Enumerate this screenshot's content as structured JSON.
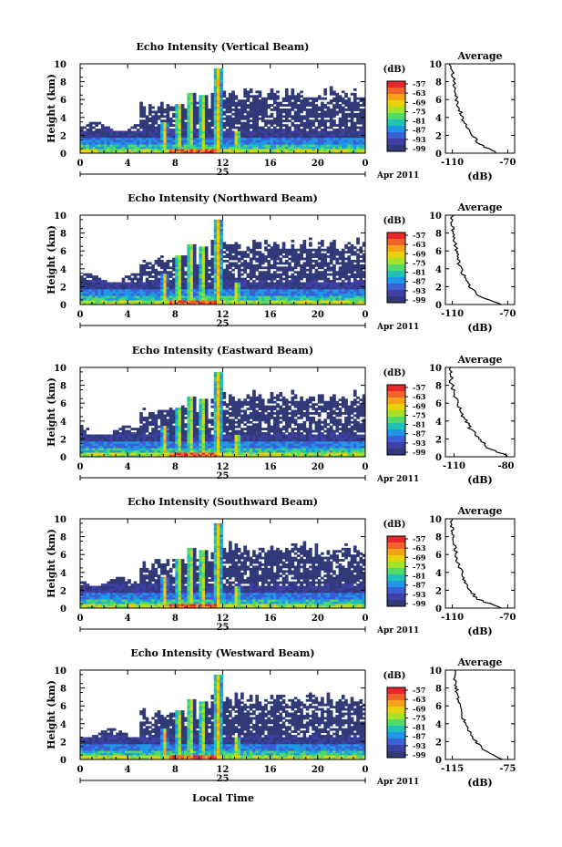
{
  "figure": {
    "xlabel_bottom": "Local Time",
    "colorbar_unit": "(dB)",
    "colorbar_ticks": [
      "-57",
      "-63",
      "-69",
      "-75",
      "-81",
      "-87",
      "-93",
      "-99"
    ],
    "average_title": "Average",
    "average_xlabel": "(dB)",
    "date_day": "25",
    "date_label": "Apr 2011",
    "colors": {
      "background_fill": "#303a78",
      "colormap": [
        "#e8272a",
        "#f2622b",
        "#f8a21c",
        "#e7d20b",
        "#a6e22a",
        "#53d86a",
        "#1fc2b4",
        "#2196e6",
        "#3b5fd6",
        "#3f3fa6",
        "#303a78"
      ]
    }
  },
  "chart_data": [
    {
      "type": "heatmap",
      "title": "Echo Intensity (Vertical Beam)",
      "ylabel": "Height (km)",
      "xlim": [
        0,
        24
      ],
      "ylim": [
        0,
        10
      ],
      "xticks": [
        "0",
        "4",
        "8",
        "12",
        "16",
        "20",
        "0"
      ],
      "yticks": [
        "0",
        "2",
        "4",
        "6",
        "8",
        "10"
      ],
      "clim": [
        -99,
        -57
      ],
      "average": {
        "xlim_labels": [
          "-110",
          "-70"
        ],
        "profile_dB": [
          -78,
          -90,
          -96,
          -100,
          -103,
          -105,
          -107,
          -108,
          -109,
          -110,
          -111
        ]
      }
    },
    {
      "type": "heatmap",
      "title": "Echo Intensity (Northward Beam)",
      "ylabel": "Height (km)",
      "xlim": [
        0,
        24
      ],
      "ylim": [
        0,
        10
      ],
      "xticks": [
        "0",
        "4",
        "8",
        "12",
        "16",
        "20",
        "0"
      ],
      "yticks": [
        "0",
        "2",
        "4",
        "6",
        "8",
        "10"
      ],
      "clim": [
        -99,
        -57
      ],
      "average": {
        "xlim_labels": [
          "-110",
          "-70"
        ],
        "profile_dB": [
          -74,
          -92,
          -97,
          -101,
          -104,
          -106,
          -107,
          -108,
          -109,
          -110,
          -110
        ]
      }
    },
    {
      "type": "heatmap",
      "title": "Echo Intensity (Eastward Beam)",
      "ylabel": "Height (km)",
      "xlim": [
        0,
        24
      ],
      "ylim": [
        0,
        10
      ],
      "xticks": [
        "0",
        "4",
        "8",
        "12",
        "16",
        "20",
        "0"
      ],
      "yticks": [
        "0",
        "2",
        "4",
        "6",
        "8",
        "10"
      ],
      "clim": [
        -99,
        -57
      ],
      "average": {
        "xlim_labels": [
          "-110",
          "-80"
        ],
        "profile_dB": [
          -79,
          -90,
          -96,
          -100,
          -103,
          -106,
          -108,
          -110,
          -111,
          -112,
          -113
        ]
      }
    },
    {
      "type": "heatmap",
      "title": "Echo Intensity (Southward Beam)",
      "ylabel": "Height (km)",
      "xlim": [
        0,
        24
      ],
      "ylim": [
        0,
        10
      ],
      "xticks": [
        "0",
        "4",
        "8",
        "12",
        "16",
        "20",
        "0"
      ],
      "yticks": [
        "0",
        "2",
        "4",
        "6",
        "8",
        "10"
      ],
      "clim": [
        -99,
        -57
      ],
      "average": {
        "xlim_labels": [
          "-110",
          "-70"
        ],
        "profile_dB": [
          -74,
          -92,
          -97,
          -101,
          -103,
          -106,
          -107,
          -108,
          -109,
          -110,
          -111
        ]
      }
    },
    {
      "type": "heatmap",
      "title": "Echo Intensity (Westward Beam)",
      "ylabel": "Height (km)",
      "xlim": [
        0,
        24
      ],
      "ylim": [
        0,
        10
      ],
      "xticks": [
        "0",
        "4",
        "8",
        "12",
        "16",
        "20",
        "0"
      ],
      "yticks": [
        "0",
        "2",
        "4",
        "6",
        "8",
        "10"
      ],
      "clim": [
        -99,
        -57
      ],
      "average": {
        "xlim_labels": [
          "-115",
          "-75"
        ],
        "profile_dB": [
          -78,
          -92,
          -98,
          -102,
          -106,
          -108,
          -110,
          -111,
          -112,
          -113,
          -114
        ]
      }
    }
  ]
}
